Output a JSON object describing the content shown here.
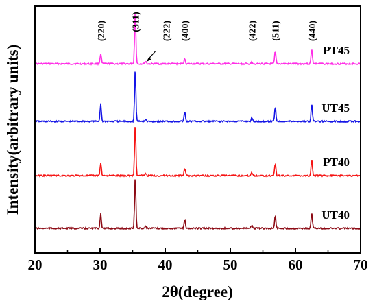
{
  "chart_data": {
    "type": "line",
    "xlabel": "2θ(degree)",
    "ylabel": "Intensity(arbitrary units)",
    "xlim": [
      20,
      70
    ],
    "xticks": [
      20,
      30,
      40,
      50,
      60,
      70
    ],
    "yticks_shown": false,
    "grid": false,
    "legend": "inline labels at right end of each trace",
    "peaks": [
      {
        "hkl": "(220)",
        "x": 30.1
      },
      {
        "hkl": "(311)",
        "x": 35.4
      },
      {
        "hkl": "(222)",
        "x": 37.0
      },
      {
        "hkl": "(400)",
        "x": 43.0
      },
      {
        "hkl": "(422)",
        "x": 53.3
      },
      {
        "hkl": "(511)",
        "x": 56.9
      },
      {
        "hkl": "(440)",
        "x": 62.5
      }
    ],
    "series": [
      {
        "name": "PT45",
        "color": "#ff2ee6",
        "offset": 3,
        "peak_heights": [
          0.12,
          0.58,
          0.03,
          0.06,
          0.03,
          0.14,
          0.17
        ]
      },
      {
        "name": "UT45",
        "color": "#1414e6",
        "offset": 2,
        "peak_heights": [
          0.2,
          0.58,
          0.02,
          0.11,
          0.04,
          0.17,
          0.2
        ]
      },
      {
        "name": "PT40",
        "color": "#f51414",
        "offset": 1,
        "peak_heights": [
          0.15,
          0.58,
          0.03,
          0.09,
          0.04,
          0.14,
          0.19
        ]
      },
      {
        "name": "UT40",
        "color": "#8c0a14",
        "offset": 0,
        "peak_heights": [
          0.17,
          0.58,
          0.03,
          0.11,
          0.04,
          0.15,
          0.18
        ]
      }
    ]
  }
}
